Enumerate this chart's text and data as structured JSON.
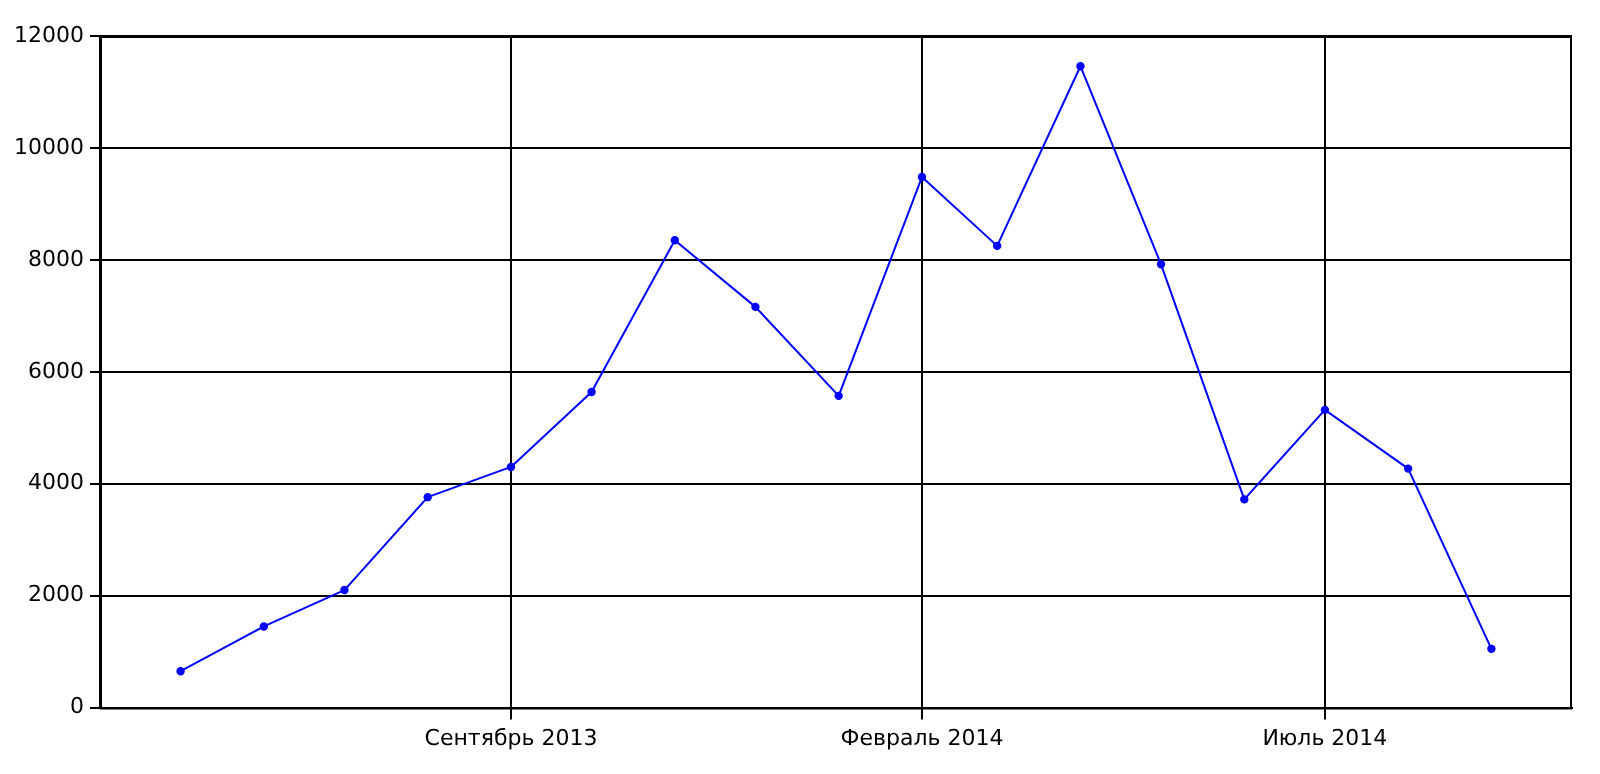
{
  "chart_data": {
    "type": "line",
    "x": [
      "2013-05",
      "2013-06",
      "2013-07",
      "2013-08",
      "2013-09",
      "2013-10",
      "2013-11",
      "2013-12",
      "2014-01",
      "2014-02",
      "2014-03",
      "2014-04",
      "2014-05",
      "2014-06",
      "2014-07",
      "2014-08",
      "2014-09"
    ],
    "series": [
      {
        "color": "#0000ff",
        "values": [
          650,
          1450,
          2100,
          3760,
          4300,
          5640,
          8350,
          7160,
          5570,
          9480,
          8250,
          11460,
          7920,
          3720,
          5320,
          4270,
          1050
        ]
      }
    ],
    "xlim": [
      "2013-04",
      "2014-10"
    ],
    "xticks": [
      {
        "value": "2013-09",
        "label": "Сентябрь 2013"
      },
      {
        "value": "2014-02",
        "label": "Февраль 2014"
      },
      {
        "value": "2014-07",
        "label": "Июль 2014"
      }
    ],
    "ylim": [
      0,
      12000
    ],
    "yticks": [
      0,
      2000,
      4000,
      6000,
      8000,
      10000,
      12000
    ],
    "grid": true,
    "legend": false,
    "marker": "circle",
    "line_style": "solid"
  }
}
